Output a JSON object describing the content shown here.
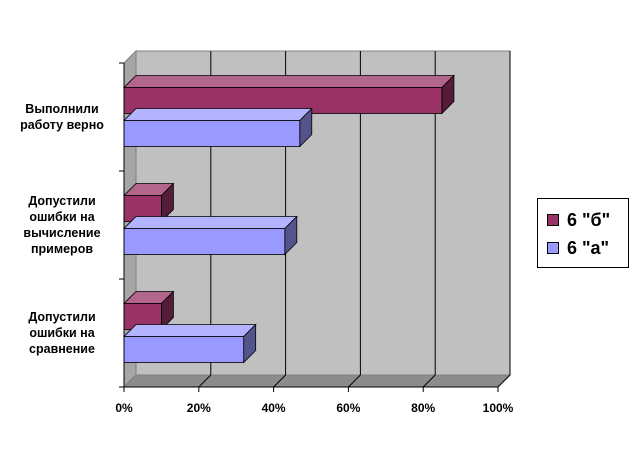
{
  "chart_data": {
    "type": "bar",
    "orientation": "horizontal",
    "style": "3d-clustered",
    "categories": [
      "Выполнили работу верно",
      "Допустили ошибки на вычисление примеров",
      "Допустили ошибки на сравнение"
    ],
    "series": [
      {
        "name": "6 \"б\"",
        "color": "#993366",
        "values": [
          85,
          10,
          10
        ]
      },
      {
        "name": "6 \"а\"",
        "color": "#9999ff",
        "values": [
          47,
          43,
          32
        ]
      }
    ],
    "xticks": [
      "0%",
      "20%",
      "40%",
      "60%",
      "80%",
      "100%"
    ],
    "xlim": [
      0,
      100
    ],
    "grid": true,
    "legend_position": "right",
    "title": "",
    "xlabel": "",
    "ylabel": ""
  }
}
